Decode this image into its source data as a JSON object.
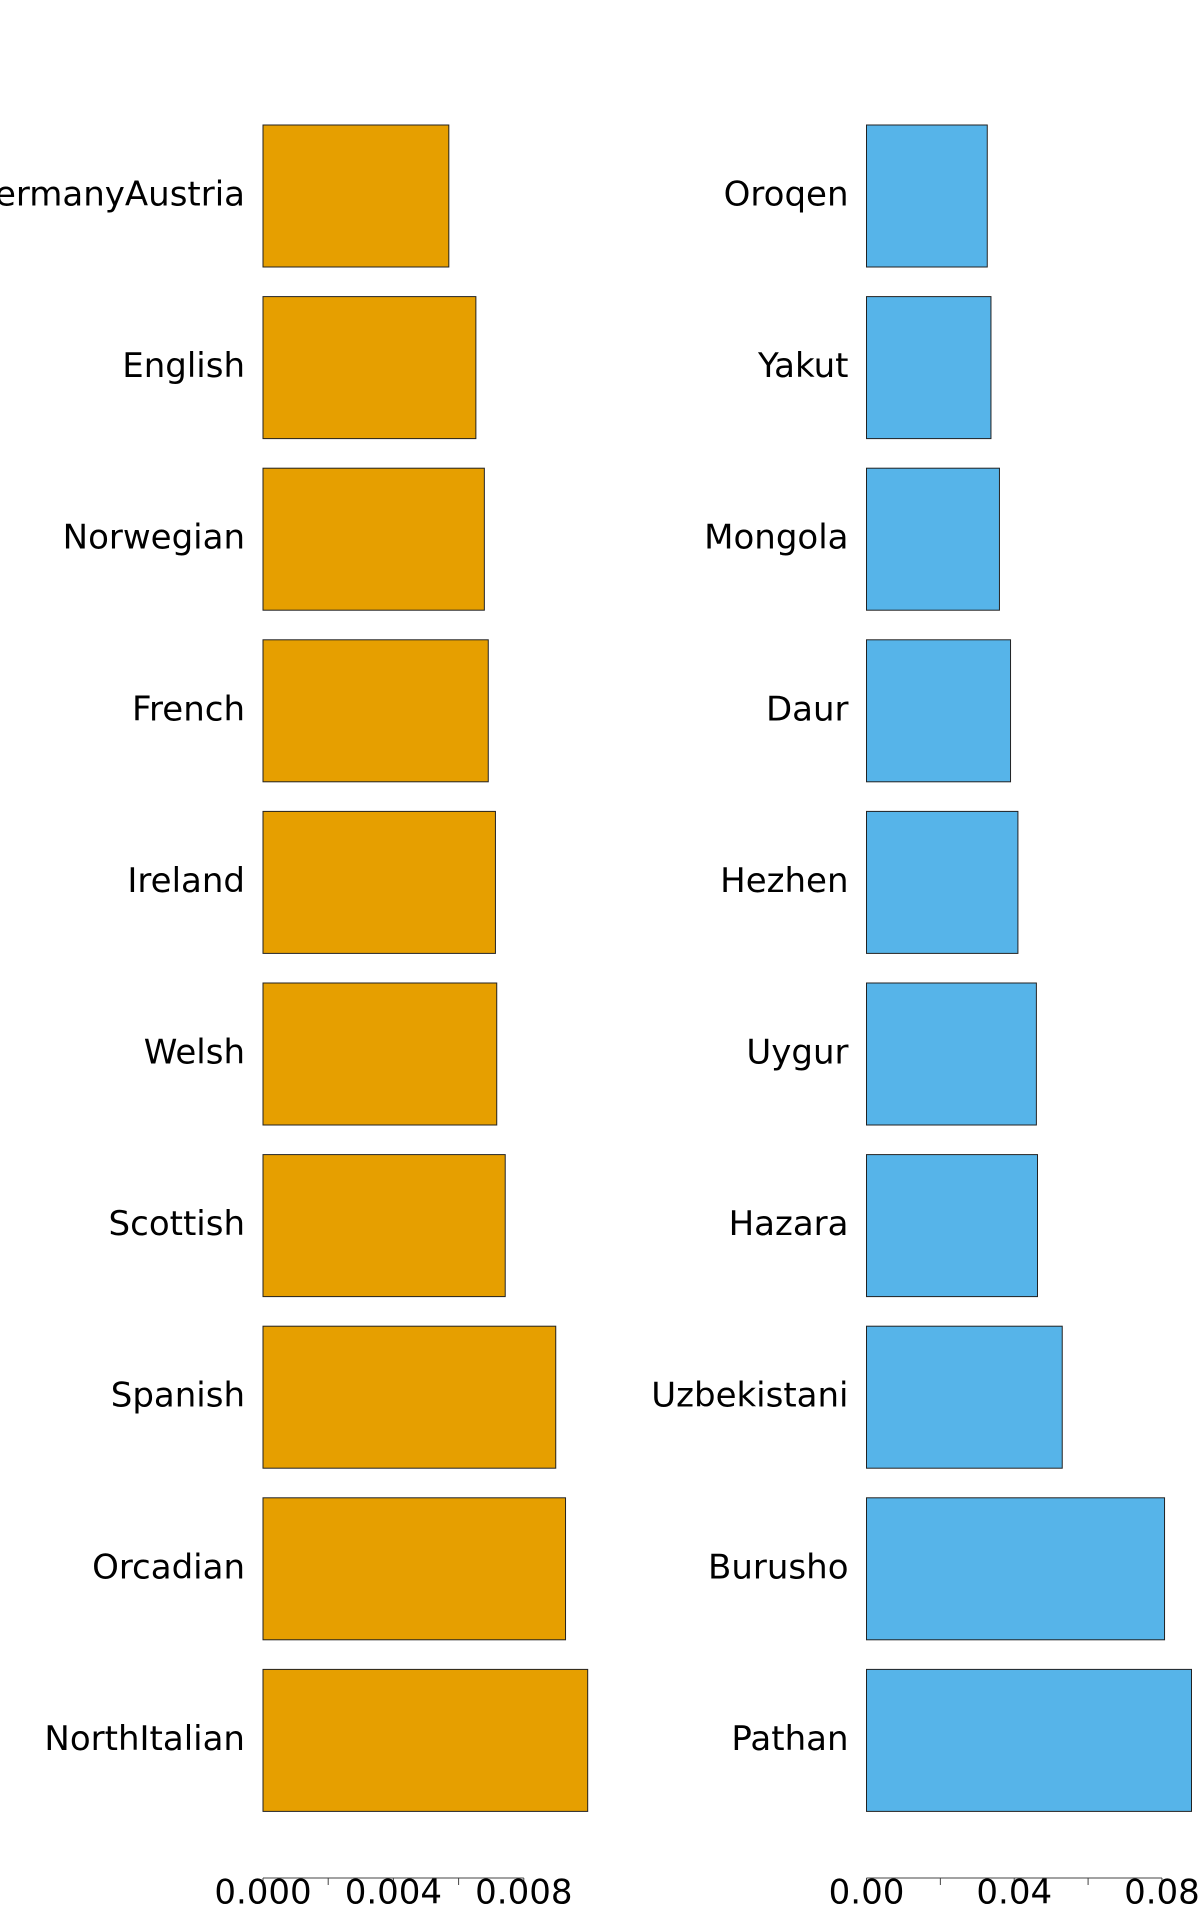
{
  "chart_data": [
    {
      "type": "bar",
      "orientation": "horizontal",
      "color": "#E69F00",
      "categories": [
        "GermanyAustria",
        "English",
        "Norwegian",
        "French",
        "Ireland",
        "Welsh",
        "Scottish",
        "Spanish",
        "Orcadian",
        "NorthItalian"
      ],
      "values": [
        0.0057,
        0.00653,
        0.00679,
        0.00691,
        0.00713,
        0.00717,
        0.00743,
        0.00898,
        0.00928,
        0.00996
      ],
      "xlim": [
        0,
        0.01
      ],
      "xticks": [
        {
          "value": 0,
          "label": "0.000"
        },
        {
          "value": 0.004,
          "label": "0.004"
        },
        {
          "value": 0.008,
          "label": "0.008"
        }
      ],
      "minor_xticks": [
        0.002,
        0.006
      ]
    },
    {
      "type": "bar",
      "orientation": "horizontal",
      "color": "#56B4E9",
      "categories": [
        "Oroqen",
        "Yakut",
        "Mongola",
        "Daur",
        "Hezhen",
        "Uygur",
        "Hazara",
        "Uzbekistani",
        "Burusho",
        "Pathan"
      ],
      "values": [
        0.0327,
        0.0337,
        0.036,
        0.039,
        0.041,
        0.046,
        0.0463,
        0.053,
        0.0807,
        0.088
      ],
      "xlim": [
        0,
        0.088
      ],
      "xticks": [
        {
          "value": 0,
          "label": "0.00"
        },
        {
          "value": 0.04,
          "label": "0.04"
        },
        {
          "value": 0.08,
          "label": "0.08"
        }
      ],
      "minor_xticks": [
        0.02,
        0.06
      ]
    }
  ]
}
